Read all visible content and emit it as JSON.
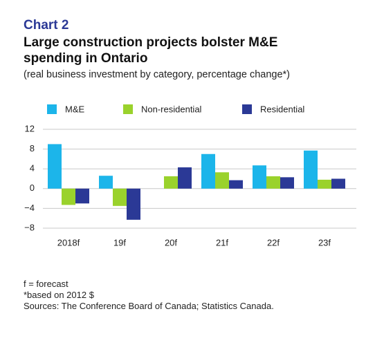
{
  "chart_data": {
    "type": "bar",
    "label": "Chart 2",
    "title": "Large construction projects bolster M&E spending in Ontario",
    "subtitle": "(real business investment by category, percentage change*)",
    "categories": [
      "2018f",
      "19f",
      "20f",
      "21f",
      "22f",
      "23f"
    ],
    "series": [
      {
        "name": "M&E",
        "color": "#1cb5ea",
        "values": [
          9.0,
          2.6,
          0,
          7.0,
          4.7,
          7.7
        ]
      },
      {
        "name": "Non-residential",
        "color": "#9ad22c",
        "values": [
          -3.3,
          -3.5,
          2.5,
          3.3,
          2.5,
          1.8
        ]
      },
      {
        "name": "Residential",
        "color": "#2b3996",
        "values": [
          -3.0,
          -6.3,
          4.3,
          1.7,
          2.3,
          2.0
        ]
      }
    ],
    "ylim": [
      -8,
      12
    ],
    "yticks": [
      {
        "value": -8,
        "label": "−8"
      },
      {
        "value": -4,
        "label": "−4"
      },
      0,
      4,
      8,
      12
    ],
    "grid": true,
    "notes": [
      "f = forecast",
      "*based on 2012 $",
      "Sources: The Conference Board of Canada; Statistics Canada."
    ]
  }
}
